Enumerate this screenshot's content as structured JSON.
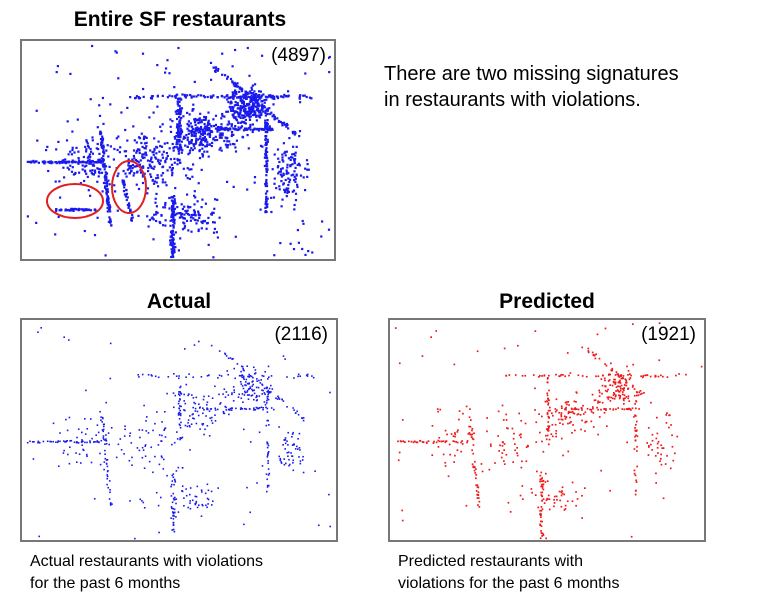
{
  "colors": {
    "actual": "#1a1aee",
    "predicted": "#ee1a1a",
    "annotation": "#e02020"
  },
  "note": {
    "line1": "There are two missing signatures",
    "line2": "in restaurants with violations."
  },
  "chart_data": [
    {
      "type": "scatter",
      "title": "Entire SF restaurants",
      "count_label": "(4897)",
      "series": [
        {
          "color": "#1a1aee",
          "point_count": 4897
        }
      ],
      "annotations": [
        "highlight: horizontal cluster on west side",
        "highlight: vertical cluster on west side"
      ]
    },
    {
      "type": "scatter",
      "title": "Actual",
      "count_label": "(2116)",
      "caption_line1": "Actual restaurants with violations",
      "caption_line2": "for the past 6 months",
      "series": [
        {
          "color": "#1a1aee",
          "point_count": 2116
        }
      ]
    },
    {
      "type": "scatter",
      "title": "Predicted",
      "count_label": "(1921)",
      "caption_line1": "Predicted restaurants with",
      "caption_line2": "violations for the past 6 months",
      "series": [
        {
          "color": "#ee1a1a",
          "point_count": 1921
        }
      ]
    }
  ]
}
